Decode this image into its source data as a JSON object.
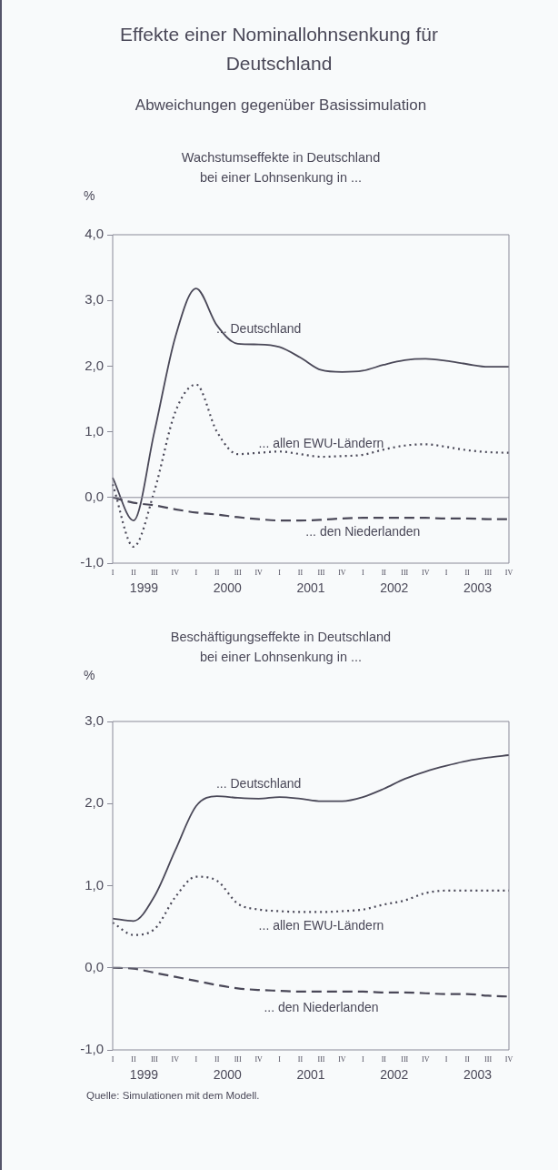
{
  "chart_data": [
    {
      "type": "line",
      "title": "Effekte einer Nominallohnsenkung für Deutschland",
      "subtitle": "Abweichungen gegenüber Basissimulation",
      "annotations": [
        "Wachstumseffekte in Deutschland\nbei einer Lohnsenkung in ...",
        "1999",
        "2000",
        "2001",
        "2002",
        "2003"
      ],
      "ylabel": "%",
      "categories": [
        "I",
        "II",
        "III",
        "IV",
        "I",
        "II",
        "III",
        "IV",
        "I",
        "II",
        "III",
        "IV",
        "I",
        "II",
        "III",
        "IV",
        "I",
        "II",
        "III",
        "IV"
      ],
      "series": [
        {
          "name": "... Deutschland",
          "color": "#4a4858",
          "line_style": "solid",
          "values": [
            0.3,
            -0.35,
            1.0,
            2.44,
            3.18,
            2.62,
            2.34,
            2.33,
            2.29,
            2.13,
            1.94,
            1.91,
            1.93,
            2.02,
            2.09,
            2.11,
            2.08,
            2.03,
            1.99,
            1.99
          ]
        },
        {
          "name": "... allen EWU-Ländern",
          "color": "#4a4858",
          "line_style": "dotted",
          "values": [
            0.2,
            -0.75,
            0.1,
            1.3,
            1.72,
            1.0,
            0.66,
            0.68,
            0.7,
            0.66,
            0.62,
            0.63,
            0.65,
            0.73,
            0.79,
            0.81,
            0.77,
            0.72,
            0.69,
            0.68
          ]
        },
        {
          "name": "... den Niederlanden",
          "color": "#4a4858",
          "line_style": "dashed",
          "values": [
            0.0,
            -0.08,
            -0.12,
            -0.18,
            -0.23,
            -0.26,
            -0.3,
            -0.33,
            -0.35,
            -0.35,
            -0.34,
            -0.32,
            -0.31,
            -0.31,
            -0.31,
            -0.31,
            -0.32,
            -0.32,
            -0.33,
            -0.33
          ]
        }
      ],
      "ylim": [
        -1,
        4
      ],
      "yticks": [
        {
          "value": -1,
          "label": "-1,0"
        },
        {
          "value": 0,
          "label": "0,0"
        },
        {
          "value": 1,
          "label": "1,0"
        },
        {
          "value": 2,
          "label": "2,0"
        },
        {
          "value": 3,
          "label": "3,0"
        },
        {
          "value": 4,
          "label": "4,0"
        }
      ],
      "ref_lines": [
        {
          "axis": "y",
          "value": 0,
          "color": "#8a8a98"
        }
      ],
      "grid": false,
      "legend": false,
      "marker": "none"
    },
    {
      "type": "line",
      "title": "Beschäftigungseffekte in Deutschland\nbei einer Lohnsenkung in ...",
      "annotations": [
        "1999",
        "2000",
        "2001",
        "2002",
        "2003",
        "Quelle: Simulationen mit dem Modell."
      ],
      "ylabel": "%",
      "categories": [
        "I",
        "II",
        "III",
        "IV",
        "I",
        "II",
        "III",
        "IV",
        "I",
        "II",
        "III",
        "IV",
        "I",
        "II",
        "III",
        "IV",
        "I",
        "II",
        "III",
        "IV"
      ],
      "series": [
        {
          "name": "... Deutschland",
          "color": "#4a4858",
          "line_style": "solid",
          "values": [
            0.6,
            0.57,
            0.87,
            1.43,
            1.97,
            2.09,
            2.07,
            2.06,
            2.08,
            2.06,
            2.03,
            2.03,
            2.08,
            2.18,
            2.3,
            2.39,
            2.46,
            2.52,
            2.56,
            2.59
          ]
        },
        {
          "name": "... allen EWU-Ländern",
          "color": "#4a4858",
          "line_style": "dotted",
          "values": [
            0.55,
            0.4,
            0.47,
            0.86,
            1.11,
            1.06,
            0.78,
            0.71,
            0.69,
            0.68,
            0.68,
            0.69,
            0.71,
            0.77,
            0.82,
            0.91,
            0.94,
            0.94,
            0.94,
            0.94
          ]
        },
        {
          "name": "... den Niederlanden",
          "color": "#4a4858",
          "line_style": "dashed",
          "values": [
            0.0,
            -0.01,
            -0.06,
            -0.11,
            -0.16,
            -0.21,
            -0.25,
            -0.27,
            -0.28,
            -0.29,
            -0.29,
            -0.29,
            -0.29,
            -0.3,
            -0.3,
            -0.31,
            -0.32,
            -0.32,
            -0.34,
            -0.35
          ]
        }
      ],
      "ylim": [
        -1,
        3
      ],
      "yticks": [
        {
          "value": -1,
          "label": "-1,0"
        },
        {
          "value": 0,
          "label": "0,0"
        },
        {
          "value": 1,
          "label": "1,0"
        },
        {
          "value": 2,
          "label": "2,0"
        },
        {
          "value": 3,
          "label": "3,0"
        }
      ],
      "ref_lines": [
        {
          "axis": "y",
          "value": 0,
          "color": "#8a8a98"
        }
      ],
      "grid": false,
      "legend": false,
      "marker": "none"
    }
  ]
}
